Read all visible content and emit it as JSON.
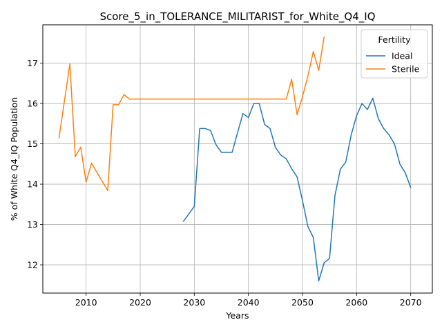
{
  "chart_data": {
    "type": "line",
    "title": "Score_5_in_TOLERANCE_MILITARIST_for_White_Q4_IQ",
    "xlabel": "Years",
    "ylabel": "% of White Q4_IQ Population",
    "xlim": [
      2002,
      2074
    ],
    "ylim": [
      11.3,
      17.95
    ],
    "xticks": [
      2010,
      2020,
      2030,
      2040,
      2050,
      2060,
      2070
    ],
    "yticks": [
      12,
      13,
      14,
      15,
      16,
      17
    ],
    "grid": true,
    "legend": {
      "title": "Fertility",
      "position": "top-right"
    },
    "series": [
      {
        "name": "Ideal",
        "color": "#1f77b4",
        "x": [
          2028,
          2030,
          2031,
          2032,
          2033,
          2034,
          2035,
          2036,
          2037,
          2038,
          2039,
          2040,
          2041,
          2042,
          2043,
          2044,
          2045,
          2046,
          2047,
          2048,
          2049,
          2050,
          2051,
          2052,
          2053,
          2054,
          2055,
          2056,
          2057,
          2058,
          2059,
          2060,
          2061,
          2062,
          2063,
          2064,
          2065,
          2066,
          2067,
          2068,
          2069,
          2070
        ],
        "y": [
          13.08,
          13.45,
          15.38,
          15.38,
          15.33,
          14.98,
          14.79,
          14.79,
          14.79,
          15.28,
          15.75,
          15.65,
          16.0,
          16.0,
          15.48,
          15.38,
          14.91,
          14.72,
          14.63,
          14.38,
          14.18,
          13.59,
          12.95,
          12.68,
          11.6,
          12.05,
          12.16,
          13.72,
          14.37,
          14.55,
          15.22,
          15.7,
          16.0,
          15.85,
          16.13,
          15.63,
          15.38,
          15.22,
          15.0,
          14.5,
          14.28,
          13.92
        ]
      },
      {
        "name": "Sterile",
        "color": "#ff7f0e",
        "x": [
          2005,
          2007,
          2008,
          2009,
          2010,
          2011,
          2014,
          2015,
          2016,
          2017,
          2018,
          2020,
          2025,
          2030,
          2035,
          2040,
          2045,
          2047,
          2048,
          2049,
          2050,
          2051,
          2052,
          2053,
          2054
        ],
        "y": [
          15.15,
          16.98,
          14.68,
          14.92,
          14.05,
          14.52,
          13.84,
          15.97,
          15.97,
          16.22,
          16.11,
          16.11,
          16.11,
          16.11,
          16.11,
          16.11,
          16.11,
          16.11,
          16.6,
          15.72,
          16.17,
          16.68,
          17.29,
          16.82,
          17.65
        ]
      }
    ]
  }
}
